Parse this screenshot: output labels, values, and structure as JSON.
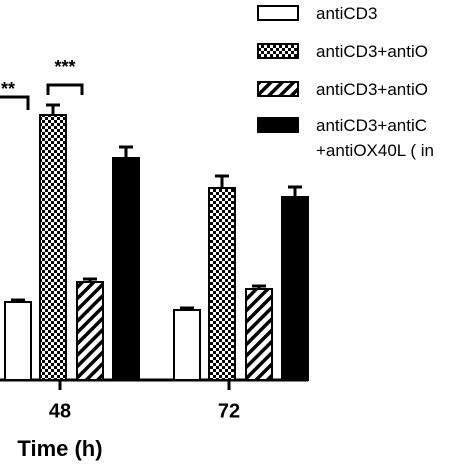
{
  "chart_data": {
    "type": "bar",
    "x_label": "Time (h)",
    "categories": [
      "48",
      "72"
    ],
    "ylim": [
      0,
      300
    ],
    "series": [
      {
        "name": "antiCD3",
        "color": "#ffffff",
        "pattern": "solid",
        "values": [
          78,
          70
        ],
        "errors": [
          2,
          2
        ]
      },
      {
        "name": "antiCD3+antiO",
        "color": "#000000",
        "pattern": "checker",
        "values": [
          265,
          192
        ],
        "errors": [
          10,
          12
        ]
      },
      {
        "name": "antiCD3+antiO",
        "color": "#000000",
        "pattern": "hatch",
        "values": [
          98,
          91
        ],
        "errors": [
          3,
          3
        ]
      },
      {
        "name": "antiCD3+antiC +antiOX40L ( in",
        "color": "#000000",
        "pattern": "solid",
        "values": [
          222,
          183
        ],
        "errors": [
          11,
          10
        ]
      }
    ],
    "annotations": [
      {
        "text": "**"
      },
      {
        "text": "***"
      }
    ]
  }
}
